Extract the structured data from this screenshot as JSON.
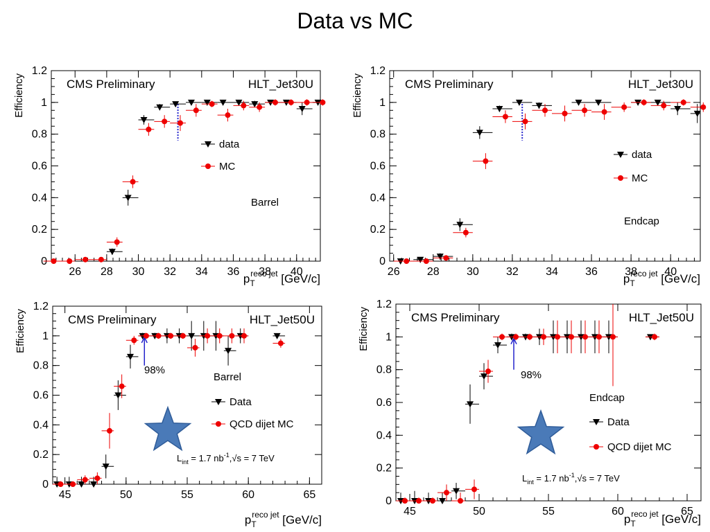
{
  "slide": {
    "title": "Data vs MC"
  },
  "colors": {
    "data": "#000000",
    "mc": "#ee0000",
    "threshold_jet30": "#2222cc",
    "threshold_jet50": "#2222cc",
    "star": "#4a7ab8"
  },
  "chart_data": [
    {
      "type": "scatter",
      "title": "",
      "label_left": "CMS Preliminary",
      "label_right": "HLT_Jet30U",
      "region": "Barrel",
      "ylabel": "Efficiency",
      "xlabel": {
        "main": "p",
        "sub": "T",
        "sup": "reco jet",
        "unit": "[GeV/c]"
      },
      "xlim": [
        24.5,
        41.5
      ],
      "ylim": [
        0,
        1.2
      ],
      "xticks": [
        26,
        28,
        30,
        32,
        34,
        36,
        38,
        40
      ],
      "yticks": [
        "0",
        "0.2",
        "0.4",
        "0.6",
        "0.8",
        "1",
        "1.2"
      ],
      "legend": [
        {
          "name": "data",
          "marker": "triangle-down"
        },
        {
          "name": "MC",
          "marker": "circle"
        }
      ],
      "threshold_x": 32.5,
      "annotation": "",
      "lumi": "",
      "star": false,
      "series": [
        {
          "name": "data",
          "marker": "triangle-down",
          "points": [
            [
              28.5,
              0.06,
              0.02
            ],
            [
              29.5,
              0.4,
              0.05
            ],
            [
              30.5,
              0.89,
              0.03
            ],
            [
              31.5,
              0.97,
              0.02
            ],
            [
              32.5,
              0.99,
              0.01
            ],
            [
              33.5,
              1.0,
              0.01
            ],
            [
              34.5,
              1.0,
              0.01
            ],
            [
              35.5,
              1.0,
              0.01
            ],
            [
              36.5,
              1.0,
              0.01
            ],
            [
              37.5,
              0.99,
              0.02
            ],
            [
              38.5,
              1.0,
              0.01
            ],
            [
              39.5,
              1.0,
              0.01
            ],
            [
              40.5,
              0.96,
              0.04
            ],
            [
              41.5,
              1.0,
              0.01
            ]
          ]
        },
        {
          "name": "MC",
          "marker": "circle",
          "points": [
            [
              24.5,
              0.0,
              0.01
            ],
            [
              25.5,
              0.0,
              0.01
            ],
            [
              26.5,
              0.01,
              0.01
            ],
            [
              27.5,
              0.01,
              0.01
            ],
            [
              28.5,
              0.12,
              0.03
            ],
            [
              29.5,
              0.5,
              0.04
            ],
            [
              30.5,
              0.83,
              0.04
            ],
            [
              31.5,
              0.88,
              0.04
            ],
            [
              32.5,
              0.87,
              0.05
            ],
            [
              33.5,
              0.95,
              0.04
            ],
            [
              34.5,
              0.99,
              0.02
            ],
            [
              35.5,
              0.92,
              0.04
            ],
            [
              36.5,
              0.98,
              0.03
            ],
            [
              37.5,
              0.97,
              0.03
            ],
            [
              38.5,
              1.0,
              0.02
            ],
            [
              39.5,
              1.0,
              0.02
            ],
            [
              40.5,
              1.0,
              0.02
            ],
            [
              41.5,
              1.0,
              0.02
            ]
          ]
        }
      ]
    },
    {
      "type": "scatter",
      "title": "",
      "label_left": "CMS Preliminary",
      "label_right": "HLT_Jet30U",
      "region": "Endcap",
      "ylabel": "Efficiency",
      "xlabel": {
        "main": "p",
        "sub": "T",
        "sup": "reco jet",
        "unit": "[GeV/c]"
      },
      "xlim": [
        25.8,
        41.5
      ],
      "ylim": [
        0,
        1.2
      ],
      "xticks": [
        26,
        28,
        30,
        32,
        34,
        36,
        38,
        40
      ],
      "yticks": [
        "0",
        "0.2",
        "0.4",
        "0.6",
        "0.8",
        "1",
        "1.2"
      ],
      "legend": [
        {
          "name": "data",
          "marker": "triangle-down"
        },
        {
          "name": "MC",
          "marker": "circle"
        }
      ],
      "threshold_x": 32.5,
      "annotation": "",
      "lumi": "",
      "star": false,
      "series": [
        {
          "name": "data",
          "marker": "triangle-down",
          "points": [
            [
              26.5,
              0.0,
              0.01
            ],
            [
              27.5,
              0.01,
              0.01
            ],
            [
              28.5,
              0.03,
              0.02
            ],
            [
              29.5,
              0.23,
              0.04
            ],
            [
              30.5,
              0.81,
              0.04
            ],
            [
              31.5,
              0.96,
              0.02
            ],
            [
              32.5,
              1.0,
              0.01
            ],
            [
              33.5,
              0.98,
              0.02
            ],
            [
              35.5,
              1.0,
              0.01
            ],
            [
              36.5,
              1.0,
              0.01
            ],
            [
              38.5,
              1.0,
              0.01
            ],
            [
              39.5,
              1.0,
              0.01
            ],
            [
              40.5,
              0.96,
              0.04
            ],
            [
              41.5,
              0.93,
              0.06
            ]
          ]
        },
        {
          "name": "MC",
          "marker": "circle",
          "points": [
            [
              26.5,
              0.0,
              0.01
            ],
            [
              27.5,
              0.0,
              0.01
            ],
            [
              28.5,
              0.02,
              0.01
            ],
            [
              29.5,
              0.18,
              0.03
            ],
            [
              30.5,
              0.63,
              0.05
            ],
            [
              31.5,
              0.91,
              0.04
            ],
            [
              32.5,
              0.88,
              0.05
            ],
            [
              33.5,
              0.95,
              0.04
            ],
            [
              34.5,
              0.93,
              0.05
            ],
            [
              35.5,
              0.95,
              0.04
            ],
            [
              36.5,
              0.94,
              0.05
            ],
            [
              37.5,
              0.97,
              0.03
            ],
            [
              38.5,
              1.0,
              0.02
            ],
            [
              39.5,
              0.98,
              0.03
            ],
            [
              40.5,
              1.0,
              0.02
            ],
            [
              41.5,
              0.97,
              0.03
            ]
          ]
        }
      ]
    },
    {
      "type": "scatter",
      "title": "",
      "label_left": "CMS Preliminary",
      "label_right": "HLT_Jet50U",
      "region": "Barrel",
      "ylabel": "Efficiency",
      "xlabel": {
        "main": "p",
        "sub": "T",
        "sup": "reco jet",
        "unit": "[GeV/c]"
      },
      "xlim": [
        44,
        66
      ],
      "ylim": [
        0,
        1.2
      ],
      "xticks": [
        45,
        50,
        55,
        60,
        65
      ],
      "yticks": [
        "0",
        "0.2",
        "0.4",
        "0.6",
        "0.8",
        "1",
        "1.2"
      ],
      "legend": [
        {
          "name": "Data",
          "marker": "triangle-down"
        },
        {
          "name": "QCD dijet MC",
          "marker": "circle"
        }
      ],
      "threshold_x": 51.5,
      "annotation": "98%",
      "lumi": {
        "pre": "L",
        "sub": "int",
        "mid": " = 1.7 nb",
        "sup": "-1",
        "post": ",√s = 7 TeV"
      },
      "star": true,
      "series": [
        {
          "name": "Data",
          "marker": "triangle-down",
          "points": [
            [
              44.5,
              0.0,
              0.05
            ],
            [
              45.5,
              0.0,
              0.05
            ],
            [
              46.5,
              0.0,
              0.05
            ],
            [
              47.5,
              0.0,
              0.05
            ],
            [
              48.5,
              0.12,
              0.08
            ],
            [
              49.5,
              0.6,
              0.1
            ],
            [
              50.5,
              0.86,
              0.08
            ],
            [
              51.5,
              1.0,
              0.02
            ],
            [
              52.5,
              1.0,
              0.02
            ],
            [
              53.5,
              1.0,
              0.05
            ],
            [
              54.5,
              1.0,
              0.05
            ],
            [
              55.5,
              1.0,
              0.1
            ],
            [
              56.5,
              1.0,
              0.1
            ],
            [
              57.5,
              1.0,
              0.1
            ],
            [
              58.5,
              0.9,
              0.1
            ],
            [
              59.5,
              1.0,
              0.05
            ],
            [
              62.5,
              1.0,
              0.01
            ]
          ]
        },
        {
          "name": "QCD dijet MC",
          "marker": "circle",
          "points": [
            [
              44.5,
              0.0,
              0.02
            ],
            [
              45.5,
              0.0,
              0.02
            ],
            [
              46.5,
              0.03,
              0.03
            ],
            [
              47.5,
              0.04,
              0.04
            ],
            [
              48.5,
              0.36,
              0.12
            ],
            [
              49.5,
              0.66,
              0.08
            ],
            [
              50.5,
              0.97,
              0.03
            ],
            [
              51.5,
              1.0,
              0.02
            ],
            [
              52.5,
              1.0,
              0.02
            ],
            [
              53.5,
              1.0,
              0.02
            ],
            [
              54.5,
              1.0,
              0.02
            ],
            [
              55.5,
              0.92,
              0.06
            ],
            [
              56.5,
              1.0,
              0.05
            ],
            [
              57.5,
              1.0,
              0.05
            ],
            [
              58.5,
              1.0,
              0.05
            ],
            [
              59.5,
              1.0,
              0.05
            ],
            [
              62.5,
              0.95,
              0.03
            ]
          ]
        }
      ]
    },
    {
      "type": "scatter",
      "title": "",
      "label_left": "CMS Preliminary",
      "label_right": "HLT_Jet50U",
      "region": "Endcap",
      "ylabel": "Efficiency",
      "xlabel": {
        "main": "p",
        "sub": "T",
        "sup": "reco jet",
        "unit": "[GeV/c]"
      },
      "xlim": [
        44,
        66
      ],
      "ylim": [
        0,
        1.2
      ],
      "xticks": [
        45,
        50,
        55,
        60,
        65
      ],
      "yticks": [
        "0",
        "0.2",
        "0.4",
        "0.6",
        "0.8",
        "1",
        "1.2"
      ],
      "legend": [
        {
          "name": "Data",
          "marker": "triangle-down"
        },
        {
          "name": "QCD dijet MC",
          "marker": "circle"
        }
      ],
      "threshold_x": 52.5,
      "annotation": "98%",
      "lumi": {
        "pre": "L",
        "sub": "int",
        "mid": " = 1.7 nb",
        "sup": "-1",
        "post": ",√s = 7 TeV"
      },
      "star": true,
      "series": [
        {
          "name": "Data",
          "marker": "triangle-down",
          "points": [
            [
              44.5,
              0.0,
              0.05
            ],
            [
              45.5,
              0.0,
              0.06
            ],
            [
              46.5,
              0.0,
              0.05
            ],
            [
              47.5,
              0.0,
              0.05
            ],
            [
              48.5,
              0.06,
              0.05
            ],
            [
              49.5,
              0.59,
              0.12
            ],
            [
              50.5,
              0.76,
              0.08
            ],
            [
              51.5,
              0.95,
              0.05
            ],
            [
              52.5,
              1.0,
              0.02
            ],
            [
              53.5,
              1.0,
              0.02
            ],
            [
              54.5,
              1.0,
              0.05
            ],
            [
              55.5,
              1.0,
              0.1
            ],
            [
              56.5,
              1.0,
              0.1
            ],
            [
              57.5,
              1.0,
              0.1
            ],
            [
              58.5,
              1.0,
              0.1
            ],
            [
              59.5,
              1.0,
              0.1
            ],
            [
              62.5,
              1.0,
              0.01
            ]
          ]
        },
        {
          "name": "QCD dijet MC",
          "marker": "circle",
          "points": [
            [
              44.5,
              0.0,
              0.02
            ],
            [
              45.5,
              0.0,
              0.02
            ],
            [
              46.5,
              0.0,
              0.02
            ],
            [
              47.5,
              0.05,
              0.05
            ],
            [
              48.5,
              0.0,
              0.05
            ],
            [
              49.5,
              0.07,
              0.06
            ],
            [
              50.5,
              0.79,
              0.07
            ],
            [
              51.5,
              1.0,
              0.02
            ],
            [
              52.5,
              1.0,
              0.02
            ],
            [
              53.5,
              1.0,
              0.02
            ],
            [
              54.5,
              1.0,
              0.05
            ],
            [
              55.5,
              1.0,
              0.1
            ],
            [
              56.5,
              1.0,
              0.1
            ],
            [
              57.5,
              1.0,
              0.1
            ],
            [
              58.5,
              1.0,
              0.1
            ],
            [
              59.5,
              1.0,
              0.3
            ],
            [
              62.5,
              1.0,
              0.02
            ]
          ]
        }
      ]
    }
  ]
}
